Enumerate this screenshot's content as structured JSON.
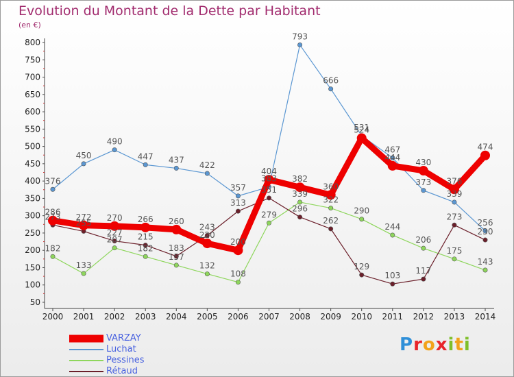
{
  "title": "Evolution du Montant de la Dette par Habitant",
  "subtitle": "(en €)",
  "logo_text": "Proxiti",
  "logo_colors": [
    "#2f8fd8",
    "#e8242a",
    "#f2a21a",
    "#e8242a",
    "#7fbf2a",
    "#f2a21a",
    "#7fbf2a"
  ],
  "chart_data": {
    "type": "line",
    "title": "Evolution du Montant de la Dette par Habitant",
    "ylabel": "(en €)",
    "x": [
      2000,
      2001,
      2002,
      2003,
      2004,
      2005,
      2006,
      2007,
      2008,
      2009,
      2010,
      2011,
      2012,
      2013,
      2014
    ],
    "ylim": [
      50,
      800
    ],
    "yticks": [
      50,
      100,
      150,
      200,
      250,
      300,
      350,
      400,
      450,
      500,
      550,
      600,
      650,
      700,
      750,
      800
    ],
    "grid": false,
    "legend_position": "bottom-left",
    "series": [
      {
        "name": "VARZAY",
        "color": "#ee0000",
        "values": [
          286,
          272,
          270,
          266,
          260,
          220,
          200,
          404,
          382,
          360,
          524,
          444,
          430,
          376,
          474
        ]
      },
      {
        "name": "Luchat",
        "color": "#5b97d2",
        "values": [
          376,
          450,
          490,
          447,
          437,
          422,
          357,
          383,
          793,
          666,
          531,
          467,
          373,
          339,
          256
        ]
      },
      {
        "name": "Pessines",
        "color": "#8ed65c",
        "values": [
          182,
          133,
          207,
          182,
          157,
          132,
          108,
          279,
          339,
          322,
          290,
          244,
          206,
          175,
          143
        ]
      },
      {
        "name": "Rétaud",
        "color": "#6b1f2a",
        "values": [
          273,
          255,
          227,
          215,
          183,
          243,
          313,
          351,
          296,
          262,
          129,
          103,
          117,
          273,
          230
        ]
      }
    ]
  }
}
